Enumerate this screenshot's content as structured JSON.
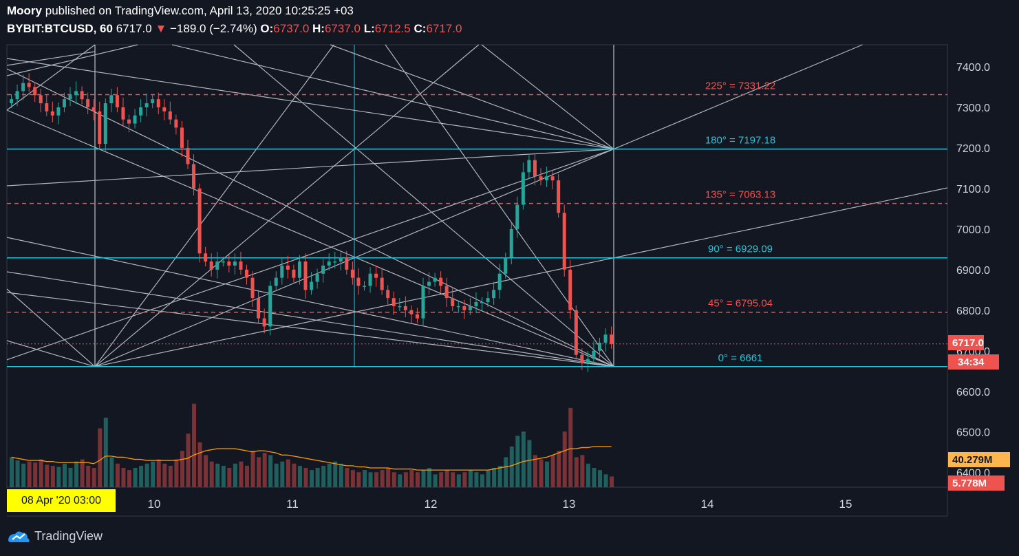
{
  "header": {
    "publisher": "Moory",
    "published_text": "published on TradingView.com, April 13, 2020 10:25:25 +03",
    "symbol": "BYBIT:BTCUSD, 60",
    "last": "6717.0",
    "change_arrow": "▼",
    "change": "−189.0 (−2.74%)",
    "o_label": "O:",
    "o_value": "6737.0",
    "h_label": "H:",
    "h_value": "6737.0",
    "l_label": "L:",
    "l_value": "6712.5",
    "c_label": "C:",
    "c_value": "6717.0"
  },
  "footer": {
    "brand": "TradingView",
    "brand_icon": "tradingview-logo-icon"
  },
  "crosshair_date": "08 Apr '20   03:00",
  "price_tags": {
    "last_price": "6717.0",
    "countdown": "34:34",
    "volume_ma": "40.279M",
    "volume_last": "5.778M"
  },
  "colors": {
    "background": "#131722",
    "up": "#26a69a",
    "down": "#ef5350",
    "cyan": "#26c6da",
    "gann_lines": "#b2b5be",
    "ma": "#ff9800"
  },
  "chart_data": {
    "type": "candlestick",
    "x_ticks": [
      "10",
      "11",
      "12",
      "13",
      "14",
      "15"
    ],
    "y_ticks": [
      "7400.0",
      "7300.0",
      "7200.0",
      "7100.0",
      "7000.0",
      "6900.0",
      "6800.0",
      "6700.0",
      "6600.0",
      "6500.0",
      "6400.0"
    ],
    "ylim": [
      6300,
      7420
    ],
    "levels": [
      {
        "label": "225° = 7331.22",
        "price": 7331.22,
        "style": "dashed",
        "color": "#ef5350"
      },
      {
        "label": "180° = 7197.18",
        "price": 7197.18,
        "style": "solid",
        "color": "#26c6da"
      },
      {
        "label": "135° = 7063.13",
        "price": 7063.13,
        "style": "dashed",
        "color": "#ef5350"
      },
      {
        "label": "90° = 6929.09",
        "price": 6929.09,
        "style": "solid",
        "color": "#26c6da"
      },
      {
        "label": "45° = 6795.04",
        "price": 6795.04,
        "style": "dashed",
        "color": "#ef5350"
      },
      {
        "label": "0° = 6661",
        "price": 6661,
        "style": "solid",
        "color": "#26c6da"
      }
    ],
    "current_price": 6717.0,
    "closes": [
      7320,
      7340,
      7360,
      7350,
      7330,
      7310,
      7290,
      7280,
      7300,
      7320,
      7330,
      7340,
      7320,
      7300,
      7290,
      7210,
      7310,
      7330,
      7300,
      7270,
      7260,
      7280,
      7300,
      7310,
      7320,
      7300,
      7290,
      7270,
      7250,
      7200,
      7160,
      7100,
      6940,
      6920,
      6900,
      6920,
      6920,
      6910,
      6920,
      6900,
      6880,
      6830,
      6780,
      6760,
      6860,
      6880,
      6910,
      6900,
      6880,
      6920,
      6850,
      6870,
      6890,
      6910,
      6920,
      6920,
      6930,
      6900,
      6880,
      6860,
      6860,
      6890,
      6880,
      6850,
      6830,
      6810,
      6810,
      6800,
      6790,
      6780,
      6860,
      6870,
      6880,
      6860,
      6830,
      6810,
      6810,
      6800,
      6810,
      6820,
      6820,
      6830,
      6850,
      6890,
      6930,
      7000,
      7060,
      7140,
      7170,
      7130,
      7120,
      7130,
      7120,
      7040,
      6900,
      6800,
      6690,
      6670,
      6680,
      6700,
      6720,
      6740,
      6717
    ],
    "volumes": [
      28,
      25,
      22,
      24,
      23,
      26,
      21,
      20,
      19,
      22,
      18,
      24,
      26,
      20,
      18,
      55,
      65,
      28,
      22,
      18,
      16,
      18,
      20,
      22,
      24,
      26,
      22,
      20,
      26,
      34,
      50,
      78,
      42,
      30,
      24,
      22,
      20,
      18,
      22,
      24,
      20,
      34,
      28,
      32,
      30,
      22,
      24,
      26,
      22,
      20,
      18,
      16,
      18,
      20,
      22,
      24,
      22,
      18,
      16,
      14,
      16,
      14,
      14,
      16,
      18,
      14,
      12,
      14,
      16,
      14,
      16,
      18,
      12,
      14,
      16,
      14,
      12,
      14,
      16,
      14,
      12,
      16,
      18,
      20,
      28,
      38,
      48,
      52,
      44,
      30,
      26,
      24,
      30,
      34,
      52,
      74,
      28,
      30,
      22,
      18,
      16,
      12,
      10
    ],
    "volume_ma": [
      28,
      27,
      26,
      25,
      25,
      25,
      24,
      24,
      23,
      23,
      23,
      23,
      23,
      23,
      22,
      25,
      29,
      29,
      28,
      28,
      27,
      26,
      26,
      25,
      25,
      25,
      25,
      25,
      25,
      26,
      27,
      30,
      32,
      34,
      35,
      36,
      36,
      36,
      36,
      35,
      34,
      33,
      34,
      34,
      33,
      32,
      30,
      30,
      29,
      28,
      27,
      26,
      25,
      24,
      23,
      22,
      21,
      20,
      20,
      19,
      19,
      18,
      18,
      18,
      18,
      17,
      17,
      17,
      17,
      16,
      16,
      16,
      16,
      16,
      16,
      16,
      16,
      16,
      16,
      16,
      16,
      16,
      17,
      18,
      19,
      20,
      22,
      24,
      25,
      26,
      27,
      28,
      30,
      32,
      34,
      36,
      36,
      37,
      37,
      38,
      38,
      38,
      38
    ]
  }
}
